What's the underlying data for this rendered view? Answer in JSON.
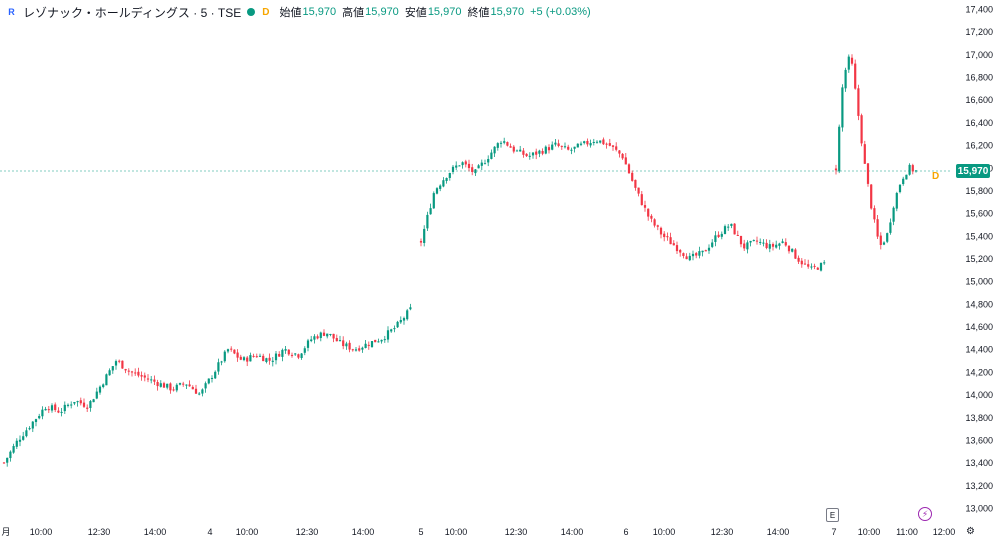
{
  "legend": {
    "symbol": "レゾナック・ホールディングス · 5 · TSE",
    "market_status": "D",
    "open_label": "始値",
    "open": "15,970",
    "high_label": "高値",
    "high": "15,970",
    "low_label": "安値",
    "low": "15,970",
    "close_label": "終値",
    "close": "15,970",
    "change": "+5 (+0.03%)"
  },
  "last_price_tag": "15,970",
  "last_marker": "D",
  "earnings_badge": "E",
  "settings_icon": "⚙",
  "colors": {
    "up": "#089981",
    "down": "#f23645",
    "grid": "#f0f3fa",
    "accent": "#2962ff"
  },
  "chart_data": {
    "type": "candlestick",
    "title": "レゾナック・ホールディングス · 5 · TSE",
    "interval": "5",
    "ylim": [
      13000,
      17400
    ],
    "y_ticks": [
      "13,000",
      "13,200",
      "13,400",
      "13,600",
      "13,800",
      "14,000",
      "14,200",
      "14,400",
      "14,600",
      "14,800",
      "15,000",
      "15,200",
      "15,400",
      "15,600",
      "15,800",
      "16,000",
      "16,200",
      "16,400",
      "16,600",
      "16,800",
      "17,000",
      "17,200",
      "17,400"
    ],
    "x_ticks": [
      "月",
      "10:00",
      "12:30",
      "14:00",
      "4",
      "10:00",
      "12:30",
      "14:00",
      "5",
      "10:00",
      "12:30",
      "14:00",
      "6",
      "10:00",
      "12:30",
      "14:00",
      "7",
      "10:00",
      "11:00",
      "12:00"
    ],
    "grid": false,
    "last_price": 15970,
    "sessions": [
      {
        "label": "月",
        "close_path": [
          13400,
          13600,
          13750,
          13900,
          13850,
          13950,
          13900,
          14100,
          14300,
          14200,
          14150,
          14100,
          14050,
          14100,
          14000,
          14200,
          14400,
          14300,
          14350,
          14300,
          14400,
          14350,
          14500,
          14550,
          14450,
          14400,
          14450,
          14500,
          14600,
          14750
        ]
      },
      {
        "label": "4",
        "close_path": [
          15350,
          15800,
          15950,
          16050,
          15950,
          16100,
          16250,
          16150,
          16100,
          16150,
          16200,
          16150,
          16200,
          16250,
          16200,
          16100,
          15800,
          15550,
          15400,
          15300,
          15200,
          15250,
          15400,
          15500,
          15300,
          15350,
          15300,
          15350,
          15200,
          15100,
          15150
        ]
      },
      {
        "label": "7",
        "close_path": [
          16000,
          16800,
          17000,
          16500,
          16000,
          15600,
          15300,
          15400,
          15700,
          15900,
          16000,
          15970
        ]
      }
    ]
  }
}
